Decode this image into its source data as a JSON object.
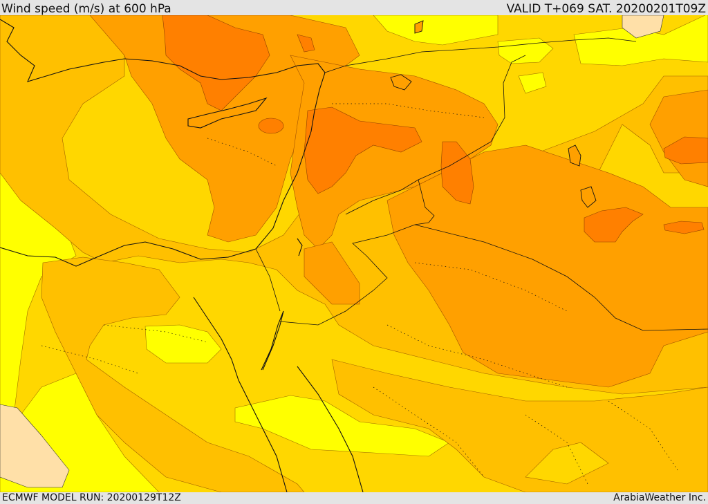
{
  "header": {
    "title": "Wind speed (m/s) at 600 hPa",
    "valid": "VALID T+069 SAT. 20200201T09Z"
  },
  "footer": {
    "model_run": "ECMWF MODEL RUN: 20200129T12Z",
    "credit": "ArabiaWeather Inc."
  },
  "map": {
    "variable": "wind speed",
    "units": "m/s",
    "level": "600 hPa",
    "colors": {
      "weakest": "#ffe0a8",
      "light": "#ffff00",
      "moderate": "#ffd700",
      "strong": "#ffc000",
      "stronger": "#ffa000",
      "strongest": "#ff8000",
      "border": "#111111"
    }
  }
}
